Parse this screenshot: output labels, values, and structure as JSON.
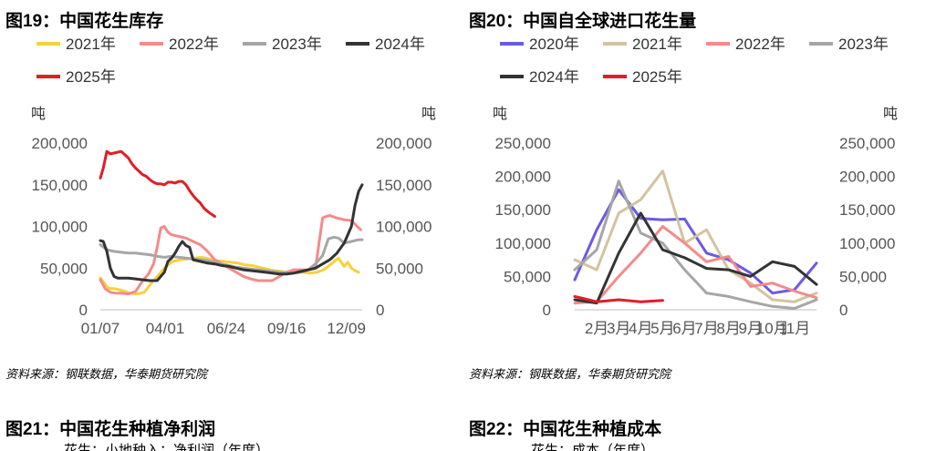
{
  "left": {
    "title": "图19：中国花生库存",
    "source": "资料来源：钢联数据，华泰期货研究院",
    "chart_data": {
      "type": "line",
      "title": "中国花生库存",
      "ylabel_left": "吨",
      "ylabel_right": "吨",
      "ylim": [
        0,
        200000
      ],
      "yticks": [
        0,
        50000,
        100000,
        150000,
        200000
      ],
      "ytick_labels": [
        "0",
        "50,000",
        "100,000",
        "150,000",
        "200,000"
      ],
      "x_domain": [
        1,
        365
      ],
      "xticks": [
        1,
        91,
        176,
        260,
        343
      ],
      "xtick_labels": [
        "01/07",
        "04/01",
        "06/24",
        "09/16",
        "12/09"
      ],
      "legend_cols": 4,
      "legend_placement": "top",
      "grid": false,
      "series": [
        {
          "name": "2021年",
          "color": "#f6d23a",
          "x": [
            1,
            12,
            22,
            32,
            42,
            52,
            62,
            72,
            82,
            92,
            102,
            112,
            122,
            132,
            142,
            152,
            162,
            172,
            182,
            192,
            202,
            212,
            222,
            232,
            242,
            252,
            262,
            272,
            282,
            292,
            302,
            312,
            322,
            332,
            340,
            345,
            350,
            355,
            360
          ],
          "values": [
            38000,
            26000,
            25000,
            23000,
            20000,
            19000,
            21000,
            32000,
            42000,
            52000,
            58000,
            60000,
            61000,
            62000,
            63000,
            61000,
            59000,
            58000,
            57000,
            56000,
            54000,
            53000,
            51000,
            49000,
            47000,
            46000,
            45000,
            45000,
            45000,
            44000,
            45000,
            48000,
            55000,
            62000,
            52000,
            57000,
            50000,
            47000,
            45000
          ]
        },
        {
          "name": "2022年",
          "color": "#f58a8a",
          "x": [
            1,
            8,
            15,
            22,
            30,
            40,
            50,
            60,
            68,
            75,
            80,
            85,
            90,
            95,
            100,
            110,
            120,
            130,
            140,
            150,
            160,
            170,
            180,
            190,
            200,
            210,
            220,
            230,
            240,
            250,
            260,
            270,
            280,
            290,
            300,
            305,
            310,
            315,
            320,
            330,
            340,
            350,
            358,
            363
          ],
          "values": [
            36000,
            25000,
            21000,
            20000,
            20000,
            19000,
            22000,
            35000,
            43000,
            55000,
            75000,
            98000,
            100000,
            93000,
            90000,
            88000,
            86000,
            82000,
            78000,
            70000,
            60000,
            55000,
            50000,
            45000,
            40000,
            37000,
            35000,
            35000,
            35000,
            40000,
            45000,
            48000,
            48000,
            48000,
            50000,
            80000,
            110000,
            112000,
            113000,
            110000,
            108000,
            107000,
            100000,
            96000
          ]
        },
        {
          "name": "2023年",
          "color": "#a6a6a6",
          "x": [
            1,
            10,
            20,
            30,
            40,
            50,
            60,
            70,
            80,
            90,
            100,
            110,
            120,
            130,
            140,
            150,
            160,
            170,
            180,
            190,
            200,
            210,
            220,
            230,
            240,
            250,
            260,
            270,
            280,
            290,
            300,
            310,
            318,
            325,
            332,
            340,
            350,
            360,
            365
          ],
          "values": [
            78000,
            72000,
            70000,
            69000,
            68000,
            68000,
            67000,
            66000,
            64000,
            63000,
            64000,
            63000,
            62000,
            61000,
            60000,
            59000,
            57000,
            55000,
            53000,
            51000,
            50000,
            49000,
            48000,
            47000,
            46000,
            45000,
            44000,
            44000,
            45000,
            48000,
            55000,
            65000,
            85000,
            87000,
            86000,
            80000,
            82000,
            84000,
            84000
          ]
        },
        {
          "name": "2024年",
          "color": "#333333",
          "x": [
            1,
            5,
            10,
            15,
            20,
            25,
            30,
            40,
            50,
            60,
            70,
            80,
            85,
            90,
            95,
            100,
            105,
            110,
            115,
            120,
            125,
            130,
            140,
            150,
            160,
            170,
            180,
            190,
            200,
            210,
            220,
            230,
            240,
            250,
            260,
            270,
            280,
            290,
            300,
            310,
            320,
            330,
            340,
            350,
            355,
            360,
            365
          ],
          "values": [
            83000,
            82000,
            70000,
            50000,
            40000,
            38000,
            38000,
            38000,
            37000,
            36000,
            35000,
            35000,
            40000,
            45000,
            58000,
            62000,
            68000,
            76000,
            82000,
            77000,
            75000,
            60000,
            58000,
            56000,
            55000,
            53000,
            52000,
            50000,
            48000,
            47000,
            46000,
            45000,
            44000,
            43000,
            43000,
            44000,
            46000,
            48000,
            50000,
            55000,
            60000,
            68000,
            80000,
            100000,
            125000,
            142000,
            150000
          ]
        },
        {
          "name": "2025年",
          "color": "#e01e26",
          "x": [
            1,
            5,
            10,
            15,
            20,
            25,
            30,
            40,
            45,
            50,
            55,
            60,
            65,
            70,
            75,
            80,
            85,
            90,
            95,
            100,
            105,
            110,
            115,
            120,
            125,
            130,
            135,
            140,
            145,
            150,
            155,
            160
          ],
          "values": [
            158000,
            170000,
            190000,
            187000,
            188000,
            189000,
            190000,
            182000,
            175000,
            170000,
            166000,
            162000,
            160000,
            156000,
            153000,
            151000,
            151000,
            150000,
            153000,
            153000,
            152000,
            154000,
            154000,
            150000,
            143000,
            137000,
            132000,
            128000,
            122000,
            118000,
            115000,
            112000
          ]
        }
      ]
    }
  },
  "right": {
    "title": "图20：中国自全球进口花生量",
    "source": "资料来源：钢联数据，华泰期货研究院",
    "chart_data": {
      "type": "line",
      "title": "中国自全球进口花生量",
      "ylabel_left": "吨",
      "ylabel_right": "吨",
      "ylim": [
        0,
        250000
      ],
      "yticks": [
        0,
        50000,
        100000,
        150000,
        200000,
        250000
      ],
      "ytick_labels": [
        "0",
        "50,000",
        "100,000",
        "150,000",
        "200,000",
        "250,000"
      ],
      "x_domain": [
        1,
        12
      ],
      "xtick_positions": [
        2,
        3,
        4,
        5,
        6,
        7,
        8,
        9,
        10,
        11
      ],
      "xtick_labels": [
        "2月",
        "3月",
        "4月",
        "5月",
        "6月",
        "7月",
        "8月",
        "9月",
        "10月",
        "11月"
      ],
      "legend_cols": 4,
      "legend_placement": "top",
      "grid": false,
      "series": [
        {
          "name": "2020年",
          "color": "#6a5be2",
          "x": [
            1,
            2,
            3,
            4,
            5,
            6,
            7,
            8,
            9,
            10,
            11,
            12
          ],
          "values": [
            45000,
            120000,
            180000,
            137000,
            135000,
            136000,
            85000,
            75000,
            55000,
            25000,
            30000,
            70000
          ]
        },
        {
          "name": "2021年",
          "color": "#d4c3a0",
          "x": [
            1,
            2,
            3,
            4,
            5,
            6,
            7,
            8,
            9,
            10,
            11,
            12
          ],
          "values": [
            75000,
            60000,
            145000,
            165000,
            208000,
            100000,
            120000,
            60000,
            40000,
            15000,
            12000,
            25000
          ]
        },
        {
          "name": "2022年",
          "color": "#f58a8a",
          "x": [
            1,
            2,
            3,
            4,
            5,
            6,
            7,
            8,
            9,
            10,
            11,
            12
          ],
          "values": [
            10000,
            12000,
            50000,
            85000,
            125000,
            100000,
            72000,
            80000,
            35000,
            40000,
            28000,
            18000
          ]
        },
        {
          "name": "2023年",
          "color": "#a6a6a6",
          "x": [
            1,
            2,
            3,
            4,
            5,
            6,
            7,
            8,
            9,
            10,
            11,
            12
          ],
          "values": [
            60000,
            90000,
            193000,
            115000,
            100000,
            60000,
            25000,
            20000,
            12000,
            5000,
            2000,
            15000
          ]
        },
        {
          "name": "2024年",
          "color": "#333333",
          "x": [
            1,
            2,
            3,
            4,
            5,
            6,
            7,
            8,
            9,
            10,
            11,
            12
          ],
          "values": [
            15000,
            10000,
            85000,
            145000,
            90000,
            78000,
            62000,
            60000,
            50000,
            72000,
            65000,
            38000
          ]
        },
        {
          "name": "2025年",
          "color": "#e01e26",
          "x": [
            1,
            2,
            3,
            4,
            5
          ],
          "values": [
            20000,
            12000,
            15000,
            12000,
            14000
          ]
        }
      ]
    }
  },
  "bottom_left": {
    "title": "图21：中国花生种植净利润",
    "subtitle": "花生：小地种入：净利润（年度）"
  },
  "bottom_right": {
    "title": "图22：中国花生种植成本",
    "subtitle": "花生：成本（年度）"
  }
}
